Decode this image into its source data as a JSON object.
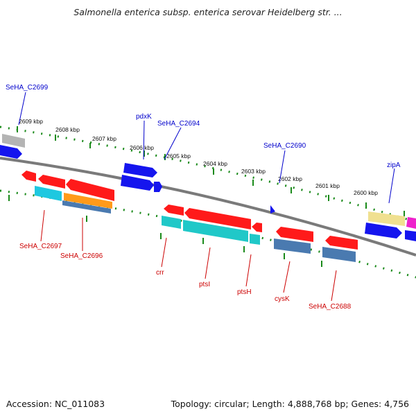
{
  "title": "Salmonella enterica subsp. enterica serovar Heidelberg str. ...",
  "footer": {
    "accession": "Accession: NC_011083",
    "topology": "Topology: circular; Length: 4,888,768 bp; Genes: 4,756"
  },
  "colors": {
    "backbone": "#7a7a7a",
    "tick_marks": "#1a8a1a",
    "forward_label": "#0000cc",
    "reverse_label": "#cc0000",
    "gene_red": "#ff1a1a",
    "gene_blue": "#1515ee",
    "gene_cyan": "#1ec8e0",
    "gene_teal": "#20c8c8",
    "gene_orange": "#ff9a1a",
    "gene_steel": "#4a7ab0",
    "gene_gray": "#b4b4b4",
    "gene_yellow": "#f0e090",
    "gene_magenta": "#ee22cc"
  },
  "scale_ticks": [
    "2609 kbp",
    "2608 kbp",
    "2607 kbp",
    "2606 kbp",
    "2605 kbp",
    "2604 kbp",
    "2603 kbp",
    "2602 kbp",
    "2601 kbp",
    "2600 kbp"
  ],
  "forward_labels": [
    "SeHA_C2699",
    "pdxK",
    "SeHA_C2694",
    "SeHA_C2690",
    "zipA"
  ],
  "reverse_labels": [
    "SeHA_C2697",
    "SeHA_C2696",
    "crr",
    "ptsI",
    "ptsH",
    "cysK",
    "SeHA_C2688"
  ]
}
